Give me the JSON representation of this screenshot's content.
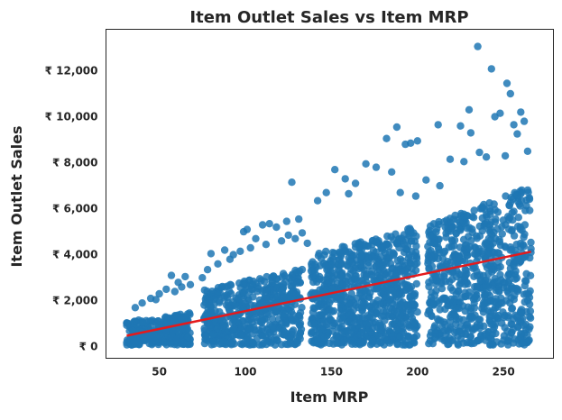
{
  "chart_data": {
    "type": "scatter",
    "title": "Item Outlet Sales vs Item MRP",
    "xlabel": "Item MRP",
    "ylabel": "Item Outlet Sales",
    "xlim": [
      19,
      279
    ],
    "ylim": [
      -500,
      13800
    ],
    "x_ticks": [
      {
        "value": 50,
        "label": "50"
      },
      {
        "value": 100,
        "label": "100"
      },
      {
        "value": 150,
        "label": "150"
      },
      {
        "value": 200,
        "label": "200"
      },
      {
        "value": 250,
        "label": "250"
      }
    ],
    "y_ticks": [
      {
        "value": 0,
        "label": "₹ 0"
      },
      {
        "value": 2000,
        "label": "₹ 2,000"
      },
      {
        "value": 4000,
        "label": "₹ 4,000"
      },
      {
        "value": 6000,
        "label": "₹ 6,000"
      },
      {
        "value": 8000,
        "label": "₹ 8,000"
      },
      {
        "value": 10000,
        "label": "₹ 10,000"
      },
      {
        "value": 12000,
        "label": "₹ 12,000"
      }
    ],
    "grid": false,
    "point_color": "#1f77b4",
    "regression_color": "#e41a1c",
    "regression_line": {
      "x": [
        31,
        266
      ],
      "y": [
        480,
        4130
      ]
    },
    "clusters": [
      {
        "x_range": [
          31,
          68
        ],
        "y_max": 1400,
        "count": 280
      },
      {
        "x_range": [
          76,
          133
        ],
        "y_max": 3300,
        "count": 520
      },
      {
        "x_range": [
          138,
          200
        ],
        "y_max": 5200,
        "count": 800
      },
      {
        "x_range": [
          206,
          266
        ],
        "y_max": 6900,
        "count": 700
      }
    ],
    "outliers": [
      {
        "x": 235,
        "y": 13050
      },
      {
        "x": 243,
        "y": 12080
      },
      {
        "x": 252,
        "y": 11450
      },
      {
        "x": 254,
        "y": 11000
      },
      {
        "x": 230,
        "y": 10300
      },
      {
        "x": 260,
        "y": 10200
      },
      {
        "x": 248,
        "y": 10150
      },
      {
        "x": 245,
        "y": 10000
      },
      {
        "x": 262,
        "y": 9800
      },
      {
        "x": 212,
        "y": 9650
      },
      {
        "x": 225,
        "y": 9600
      },
      {
        "x": 231,
        "y": 9300
      },
      {
        "x": 256,
        "y": 9650
      },
      {
        "x": 258,
        "y": 9250
      },
      {
        "x": 200,
        "y": 8950
      },
      {
        "x": 188,
        "y": 9550
      },
      {
        "x": 182,
        "y": 9050
      },
      {
        "x": 193,
        "y": 8800
      },
      {
        "x": 196,
        "y": 8850
      },
      {
        "x": 236,
        "y": 8450
      },
      {
        "x": 240,
        "y": 8250
      },
      {
        "x": 251,
        "y": 8300
      },
      {
        "x": 264,
        "y": 8500
      },
      {
        "x": 219,
        "y": 8150
      },
      {
        "x": 227,
        "y": 8050
      },
      {
        "x": 170,
        "y": 7950
      },
      {
        "x": 176,
        "y": 7800
      },
      {
        "x": 152,
        "y": 7700
      },
      {
        "x": 158,
        "y": 7300
      },
      {
        "x": 164,
        "y": 7100
      },
      {
        "x": 127,
        "y": 7150
      },
      {
        "x": 185,
        "y": 7600
      },
      {
        "x": 205,
        "y": 7250
      },
      {
        "x": 213,
        "y": 7000
      },
      {
        "x": 147,
        "y": 6700
      },
      {
        "x": 142,
        "y": 6350
      },
      {
        "x": 160,
        "y": 6650
      },
      {
        "x": 190,
        "y": 6700
      },
      {
        "x": 199,
        "y": 6550
      },
      {
        "x": 110,
        "y": 5300
      },
      {
        "x": 114,
        "y": 5350
      },
      {
        "x": 118,
        "y": 5200
      },
      {
        "x": 124,
        "y": 5450
      },
      {
        "x": 131,
        "y": 5550
      },
      {
        "x": 99,
        "y": 5000
      },
      {
        "x": 101,
        "y": 5100
      },
      {
        "x": 106,
        "y": 4700
      },
      {
        "x": 121,
        "y": 4600
      },
      {
        "x": 88,
        "y": 4200
      },
      {
        "x": 93,
        "y": 4000
      },
      {
        "x": 97,
        "y": 4150
      },
      {
        "x": 80,
        "y": 4050
      },
      {
        "x": 136,
        "y": 4500
      },
      {
        "x": 125,
        "y": 4850
      },
      {
        "x": 57,
        "y": 3100
      },
      {
        "x": 65,
        "y": 3050
      },
      {
        "x": 61,
        "y": 2800
      },
      {
        "x": 54,
        "y": 2500
      },
      {
        "x": 50,
        "y": 2300
      },
      {
        "x": 45,
        "y": 2100
      },
      {
        "x": 68,
        "y": 2700
      },
      {
        "x": 40,
        "y": 1900
      },
      {
        "x": 36,
        "y": 1700
      },
      {
        "x": 63,
        "y": 2600
      },
      {
        "x": 59,
        "y": 2400
      },
      {
        "x": 48,
        "y": 2050
      },
      {
        "x": 84,
        "y": 3600
      },
      {
        "x": 91,
        "y": 3800
      },
      {
        "x": 103,
        "y": 4300
      },
      {
        "x": 112,
        "y": 4450
      },
      {
        "x": 129,
        "y": 4700
      },
      {
        "x": 133,
        "y": 4950
      },
      {
        "x": 75,
        "y": 3000
      },
      {
        "x": 78,
        "y": 3350
      }
    ]
  }
}
